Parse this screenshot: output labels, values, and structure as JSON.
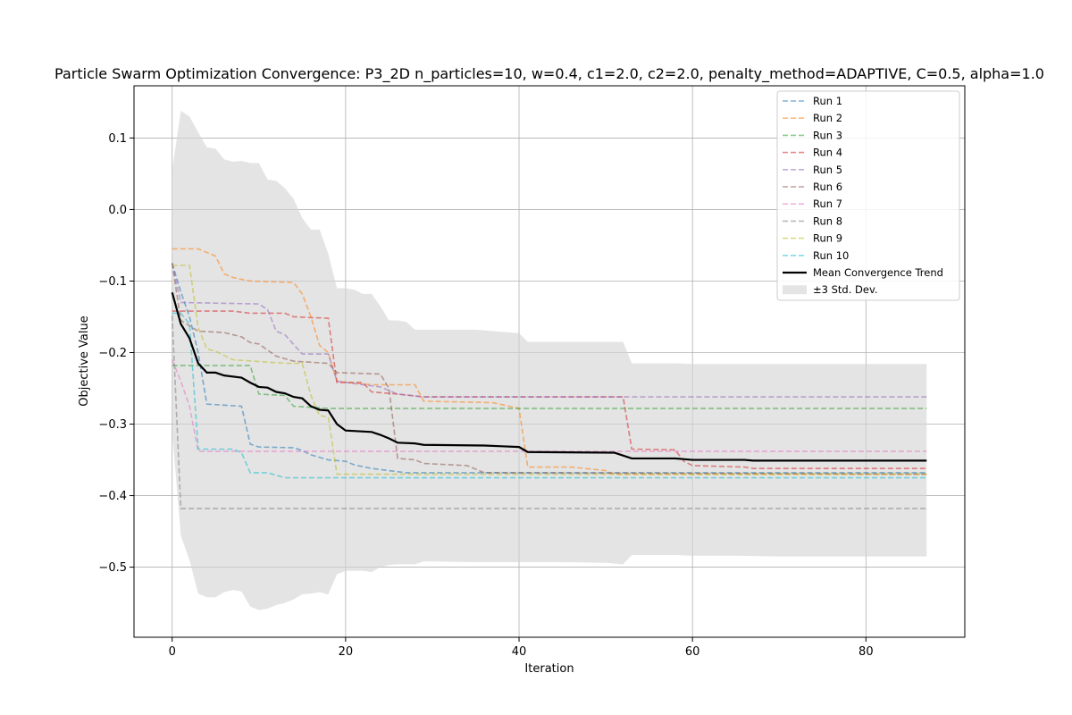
{
  "chart_data": {
    "type": "line",
    "title": "Particle Swarm Optimization Convergence: P3_2D n_particles=10, w=0.4, c1=2.0, c2=2.0, penalty_method=ADAPTIVE, C=0.5, alpha=1.0",
    "xlabel": "Iteration",
    "ylabel": "Objective Value",
    "xlim": [
      -4.4,
      91.4
    ],
    "ylim": [
      -0.598,
      0.173
    ],
    "xticks": [
      0,
      20,
      40,
      60,
      80
    ],
    "xtick_labels": [
      "0",
      "20",
      "40",
      "60",
      "80"
    ],
    "yticks": [
      0.1,
      0.0,
      -0.1,
      -0.2,
      -0.3,
      -0.4,
      -0.5
    ],
    "ytick_labels": [
      "0.1",
      "0.0",
      "−0.1",
      "−0.2",
      "−0.3",
      "−0.4",
      "−0.5"
    ],
    "grid": true,
    "legend_position": "top-right",
    "series": [
      {
        "name": "Run 1",
        "color": "#1f77b4",
        "style": "dashed",
        "points": [
          [
            0,
            -0.075
          ],
          [
            1,
            -0.115
          ],
          [
            2,
            -0.15
          ],
          [
            3,
            -0.2
          ],
          [
            4,
            -0.272
          ],
          [
            8,
            -0.275
          ],
          [
            9,
            -0.328
          ],
          [
            10,
            -0.332
          ],
          [
            14,
            -0.333
          ],
          [
            15,
            -0.337
          ],
          [
            16,
            -0.343
          ],
          [
            18,
            -0.35
          ],
          [
            20,
            -0.352
          ],
          [
            21,
            -0.357
          ],
          [
            23,
            -0.362
          ],
          [
            27,
            -0.368
          ],
          [
            40,
            -0.368
          ],
          [
            87,
            -0.368
          ]
        ]
      },
      {
        "name": "Run 2",
        "color": "#ff7f0e",
        "style": "dashed",
        "points": [
          [
            0,
            -0.055
          ],
          [
            3,
            -0.055
          ],
          [
            5,
            -0.065
          ],
          [
            6,
            -0.09
          ],
          [
            7,
            -0.095
          ],
          [
            9,
            -0.1
          ],
          [
            14,
            -0.102
          ],
          [
            15,
            -0.118
          ],
          [
            16,
            -0.15
          ],
          [
            17,
            -0.19
          ],
          [
            18,
            -0.2
          ],
          [
            19,
            -0.24
          ],
          [
            23,
            -0.245
          ],
          [
            28,
            -0.245
          ],
          [
            29,
            -0.268
          ],
          [
            37,
            -0.27
          ],
          [
            40,
            -0.278
          ],
          [
            41,
            -0.36
          ],
          [
            46,
            -0.36
          ],
          [
            50,
            -0.365
          ],
          [
            51,
            -0.37
          ],
          [
            87,
            -0.37
          ]
        ]
      },
      {
        "name": "Run 3",
        "color": "#2ca02c",
        "style": "dashed",
        "points": [
          [
            0,
            -0.218
          ],
          [
            9,
            -0.218
          ],
          [
            10,
            -0.258
          ],
          [
            13,
            -0.26
          ],
          [
            14,
            -0.275
          ],
          [
            18,
            -0.278
          ],
          [
            87,
            -0.278
          ]
        ]
      },
      {
        "name": "Run 4",
        "color": "#d62728",
        "style": "dashed",
        "points": [
          [
            0,
            -0.142
          ],
          [
            7,
            -0.142
          ],
          [
            9,
            -0.145
          ],
          [
            13,
            -0.145
          ],
          [
            14,
            -0.15
          ],
          [
            18,
            -0.152
          ],
          [
            19,
            -0.242
          ],
          [
            22,
            -0.242
          ],
          [
            23,
            -0.255
          ],
          [
            26,
            -0.258
          ],
          [
            29,
            -0.262
          ],
          [
            52,
            -0.262
          ],
          [
            53,
            -0.335
          ],
          [
            58,
            -0.336
          ],
          [
            59,
            -0.352
          ],
          [
            60,
            -0.358
          ],
          [
            66,
            -0.36
          ],
          [
            67,
            -0.362
          ],
          [
            87,
            -0.362
          ]
        ]
      },
      {
        "name": "Run 5",
        "color": "#9467bd",
        "style": "dashed",
        "points": [
          [
            0,
            -0.075
          ],
          [
            1,
            -0.13
          ],
          [
            10,
            -0.132
          ],
          [
            11,
            -0.14
          ],
          [
            12,
            -0.17
          ],
          [
            13,
            -0.175
          ],
          [
            15,
            -0.202
          ],
          [
            18,
            -0.202
          ],
          [
            19,
            -0.24
          ],
          [
            22,
            -0.245
          ],
          [
            24,
            -0.248
          ],
          [
            26,
            -0.258
          ],
          [
            29,
            -0.262
          ],
          [
            87,
            -0.262
          ]
        ]
      },
      {
        "name": "Run 6",
        "color": "#8c564b",
        "style": "dashed",
        "points": [
          [
            0,
            -0.075
          ],
          [
            1,
            -0.155
          ],
          [
            3,
            -0.17
          ],
          [
            6,
            -0.172
          ],
          [
            8,
            -0.178
          ],
          [
            9,
            -0.186
          ],
          [
            10,
            -0.188
          ],
          [
            12,
            -0.205
          ],
          [
            14,
            -0.212
          ],
          [
            18,
            -0.215
          ],
          [
            19,
            -0.228
          ],
          [
            24,
            -0.23
          ],
          [
            25,
            -0.25
          ],
          [
            26,
            -0.348
          ],
          [
            28,
            -0.35
          ],
          [
            29,
            -0.355
          ],
          [
            34,
            -0.358
          ],
          [
            36,
            -0.368
          ],
          [
            87,
            -0.37
          ]
        ]
      },
      {
        "name": "Run 7",
        "color": "#e377c2",
        "style": "dashed",
        "points": [
          [
            0,
            -0.21
          ],
          [
            1,
            -0.24
          ],
          [
            2,
            -0.275
          ],
          [
            3,
            -0.338
          ],
          [
            87,
            -0.338
          ]
        ]
      },
      {
        "name": "Run 8",
        "color": "#7f7f7f",
        "style": "dashed",
        "points": [
          [
            0,
            -0.148
          ],
          [
            1,
            -0.418
          ],
          [
            87,
            -0.418
          ]
        ]
      },
      {
        "name": "Run 9",
        "color": "#bcbd22",
        "style": "dashed",
        "points": [
          [
            0,
            -0.078
          ],
          [
            2,
            -0.078
          ],
          [
            3,
            -0.165
          ],
          [
            4,
            -0.195
          ],
          [
            5,
            -0.198
          ],
          [
            7,
            -0.21
          ],
          [
            13,
            -0.215
          ],
          [
            15,
            -0.215
          ],
          [
            16,
            -0.26
          ],
          [
            17,
            -0.288
          ],
          [
            18,
            -0.29
          ],
          [
            19,
            -0.37
          ],
          [
            87,
            -0.37
          ]
        ]
      },
      {
        "name": "Run 10",
        "color": "#17becf",
        "style": "dashed",
        "points": [
          [
            0,
            -0.145
          ],
          [
            1,
            -0.145
          ],
          [
            2,
            -0.16
          ],
          [
            3,
            -0.335
          ],
          [
            7,
            -0.335
          ],
          [
            8,
            -0.34
          ],
          [
            9,
            -0.368
          ],
          [
            11,
            -0.368
          ],
          [
            13,
            -0.375
          ],
          [
            87,
            -0.375
          ]
        ]
      },
      {
        "name": "Mean Convergence Trend",
        "color": "#000000",
        "style": "solid",
        "points": [
          [
            0,
            -0.116
          ],
          [
            1,
            -0.16
          ],
          [
            2,
            -0.18
          ],
          [
            3,
            -0.215
          ],
          [
            4,
            -0.228
          ],
          [
            5,
            -0.228
          ],
          [
            6,
            -0.232
          ],
          [
            8,
            -0.235
          ],
          [
            9,
            -0.242
          ],
          [
            10,
            -0.248
          ],
          [
            11,
            -0.249
          ],
          [
            12,
            -0.255
          ],
          [
            13,
            -0.257
          ],
          [
            14,
            -0.262
          ],
          [
            15,
            -0.264
          ],
          [
            16,
            -0.275
          ],
          [
            17,
            -0.28
          ],
          [
            18,
            -0.281
          ],
          [
            19,
            -0.3
          ],
          [
            20,
            -0.309
          ],
          [
            23,
            -0.311
          ],
          [
            24,
            -0.315
          ],
          [
            25,
            -0.32
          ],
          [
            26,
            -0.326
          ],
          [
            28,
            -0.327
          ],
          [
            29,
            -0.329
          ],
          [
            36,
            -0.33
          ],
          [
            38,
            -0.331
          ],
          [
            40,
            -0.332
          ],
          [
            41,
            -0.339
          ],
          [
            51,
            -0.34
          ],
          [
            53,
            -0.348
          ],
          [
            58,
            -0.348
          ],
          [
            60,
            -0.35
          ],
          [
            66,
            -0.35
          ],
          [
            67,
            -0.351
          ],
          [
            87,
            -0.351
          ]
        ]
      }
    ],
    "band": {
      "name": "±3 Std. Dev.",
      "color": "#d3d3d3",
      "x": [
        0,
        1,
        2,
        3,
        4,
        5,
        6,
        7,
        8,
        9,
        10,
        11,
        12,
        13,
        14,
        15,
        16,
        17,
        18,
        19,
        20,
        21,
        22,
        23,
        24,
        25,
        26,
        27,
        28,
        29,
        30,
        35,
        40,
        41,
        45,
        50,
        52,
        53,
        55,
        58,
        60,
        65,
        70,
        80,
        87
      ],
      "upper": [
        0.055,
        0.138,
        0.13,
        0.108,
        0.087,
        0.085,
        0.07,
        0.067,
        0.068,
        0.065,
        0.065,
        0.042,
        0.04,
        0.03,
        0.015,
        -0.012,
        -0.028,
        -0.028,
        -0.062,
        -0.11,
        -0.11,
        -0.112,
        -0.118,
        -0.118,
        -0.135,
        -0.155,
        -0.155,
        -0.157,
        -0.168,
        -0.168,
        -0.168,
        -0.168,
        -0.173,
        -0.185,
        -0.185,
        -0.185,
        -0.185,
        -0.215,
        -0.215,
        -0.215,
        -0.216,
        -0.216,
        -0.216,
        -0.216,
        -0.216
      ],
      "lower": [
        -0.31,
        -0.456,
        -0.49,
        -0.537,
        -0.542,
        -0.542,
        -0.535,
        -0.532,
        -0.534,
        -0.555,
        -0.56,
        -0.558,
        -0.553,
        -0.55,
        -0.545,
        -0.538,
        -0.537,
        -0.535,
        -0.538,
        -0.51,
        -0.505,
        -0.505,
        -0.505,
        -0.507,
        -0.5,
        -0.497,
        -0.496,
        -0.496,
        -0.496,
        -0.492,
        -0.492,
        -0.493,
        -0.493,
        -0.493,
        -0.493,
        -0.494,
        -0.496,
        -0.483,
        -0.483,
        -0.483,
        -0.484,
        -0.484,
        -0.485,
        -0.485,
        -0.485
      ]
    }
  }
}
